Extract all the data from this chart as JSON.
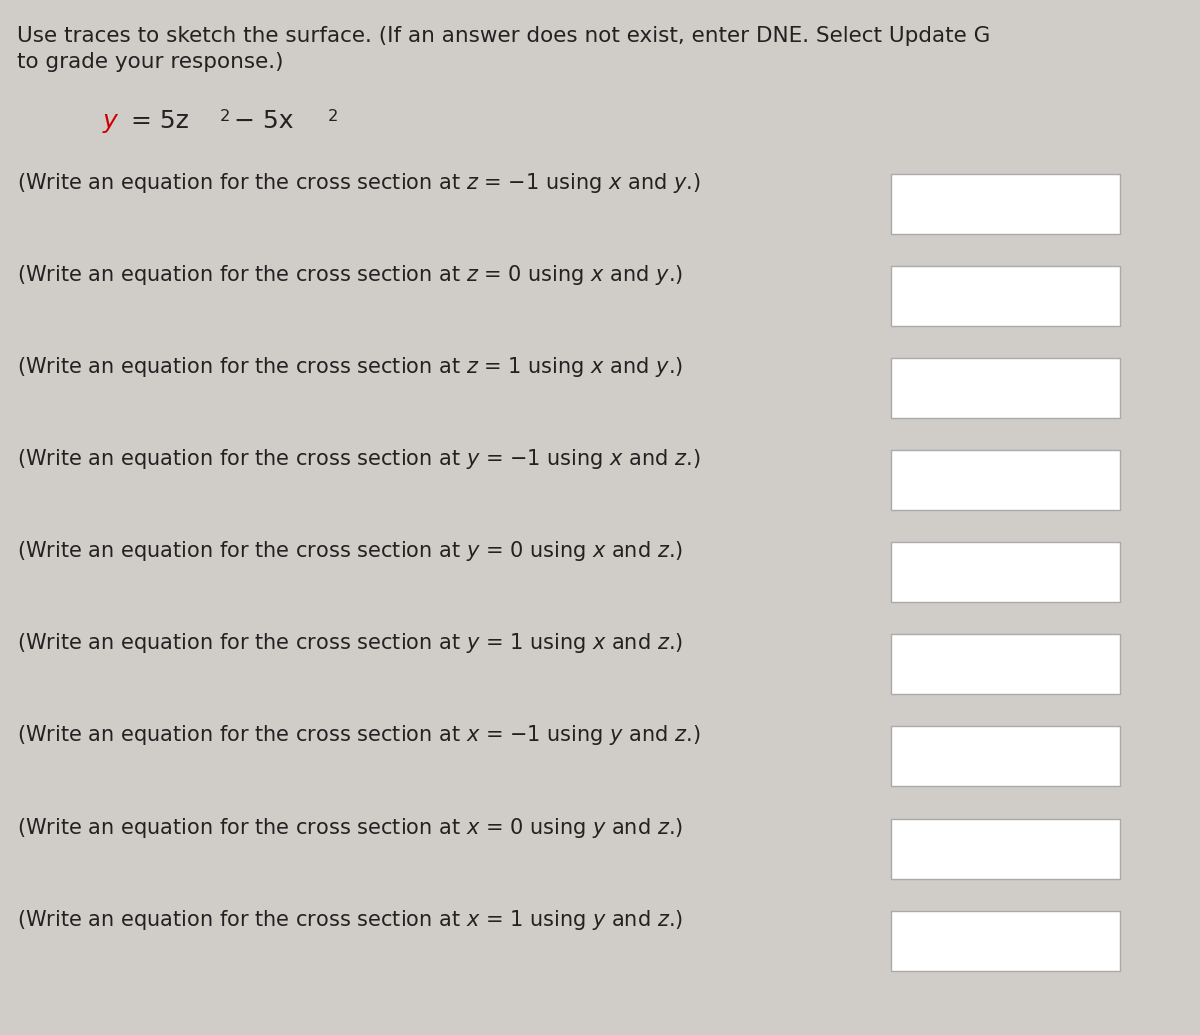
{
  "background_color": "#d0ccc8",
  "white_bg": "#ffffff",
  "title_line1": "Use traces to sketch the surface. (If an answer does not exist, enter DNE. Select Update G",
  "title_line2": "to grade your response.)",
  "formula": "y = 5z² − 5x²",
  "questions": [
    "(Write an equation for the cross section at z = −1 using x and y.)",
    "(Write an equation for the cross section at z = 0 using x and y.)",
    "(Write an equation for the cross section at z = 1 using x and y.)",
    "(Write an equation for the cross section at y = −1 using x and z.)",
    "(Write an equation for the cross section at y = 0 using x and z.)",
    "(Write an equation for the cross section at y = 1 using x and z.)",
    "(Write an equation for the cross section at x = −1 using y and z.)",
    "(Write an equation for the cross section at x = 0 using y and z.)",
    "(Write an equation for the cross section at x = 1 using y and z.)"
  ],
  "italic_words_per_question": [
    [
      "x",
      "y"
    ],
    [
      "x",
      "y"
    ],
    [
      "x",
      "y"
    ],
    [
      "x",
      "z"
    ],
    [
      "x",
      "z"
    ],
    [
      "x",
      "z"
    ],
    [
      "y",
      "z"
    ],
    [
      "y",
      "z"
    ],
    [
      "y",
      "z"
    ]
  ],
  "box_color": "#c8c4c0",
  "box_border": "#aaaaaa",
  "text_color": "#222222",
  "formula_color_y": "#cc0000",
  "title_fontsize": 15.5,
  "question_fontsize": 15.0,
  "formula_fontsize": 18.0
}
